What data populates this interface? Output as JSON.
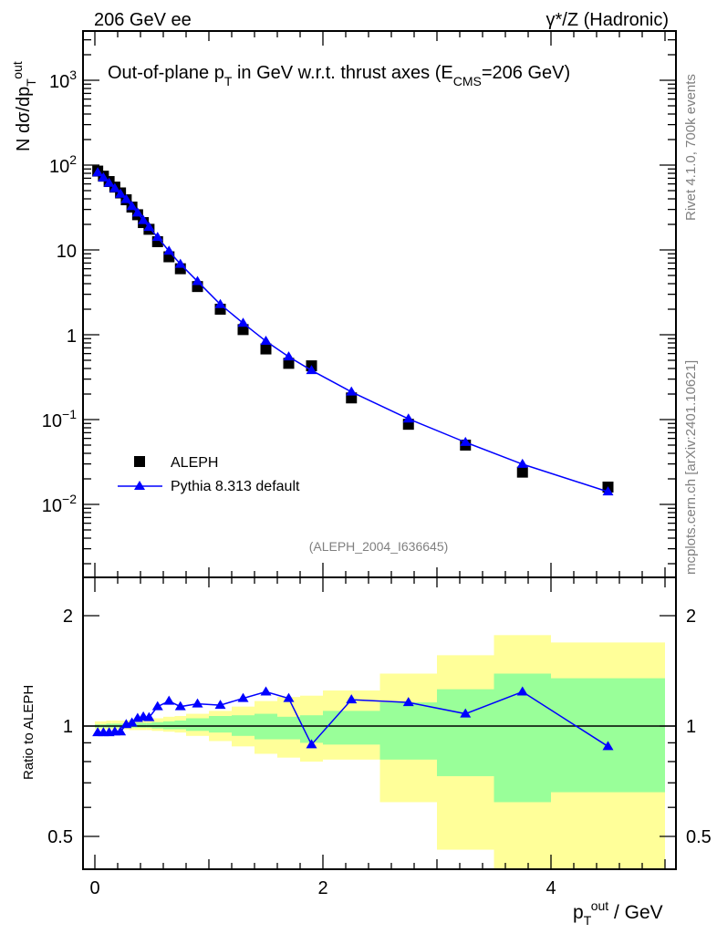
{
  "header": {
    "left": "206 GeV ee",
    "right": "γ*/Z (Hadronic)"
  },
  "side_labels": {
    "rivet": "Rivet 4.1.0,  700k events",
    "mcplots": "mcplots.cern.ch [arXiv:2401.10621]"
  },
  "chart_data": [
    {
      "type": "scatter",
      "title_main": "Out-of-plane p",
      "title_sub": "T",
      "title_rest": " in GeV w.r.t. thrust axes (E",
      "title_sub2": "CMS",
      "title_end": "=206 GeV)",
      "analysis_id": "(ALEPH_2004_I636645)",
      "ylabel_main": "N  dσ/dp",
      "ylabel_sup": "out",
      "ylabel_sub": "T",
      "yscale": "log",
      "ylim": [
        0.0014,
        3700
      ],
      "xlim": [
        -0.1,
        5.1
      ],
      "ytick_labels": [
        {
          "value": 1000,
          "base": "10",
          "exp": "3"
        },
        {
          "value": 100,
          "base": "10",
          "exp": "2"
        },
        {
          "value": 10,
          "base": "10",
          "exp": ""
        },
        {
          "value": 1,
          "base": "1",
          "exp": ""
        },
        {
          "value": 0.1,
          "base": "10",
          "exp": "−1"
        },
        {
          "value": 0.01,
          "base": "10",
          "exp": "−2"
        }
      ],
      "legend_position": "bottom-left",
      "x": [
        0.025,
        0.075,
        0.125,
        0.175,
        0.225,
        0.275,
        0.325,
        0.375,
        0.425,
        0.475,
        0.55,
        0.65,
        0.75,
        0.9,
        1.1,
        1.3,
        1.5,
        1.7,
        1.9,
        2.25,
        2.75,
        3.25,
        3.75,
        4.5
      ],
      "bin_edges": [
        0,
        0.05,
        0.1,
        0.15,
        0.2,
        0.25,
        0.3,
        0.35,
        0.4,
        0.45,
        0.5,
        0.6,
        0.7,
        0.8,
        1.0,
        1.2,
        1.4,
        1.6,
        1.8,
        2.0,
        2.5,
        3.0,
        3.5,
        4.0,
        5.0
      ],
      "series": [
        {
          "name": "ALEPH",
          "marker": "square",
          "color": "#000000",
          "values": [
            85,
            74,
            64,
            55,
            47,
            39,
            32,
            26,
            21,
            17.5,
            12.5,
            8.3,
            6.0,
            3.7,
            2.0,
            1.15,
            0.68,
            0.46,
            0.43,
            0.18,
            0.088,
            0.05,
            0.024,
            0.016
          ]
        },
        {
          "name": "Pythia 8.313 default",
          "marker": "triangle",
          "color": "#0000ff",
          "values": [
            81.6,
            71.0,
            61.4,
            53.1,
            45.6,
            39.4,
            32.6,
            27.3,
            22.3,
            18.5,
            14.1,
            9.7,
            6.8,
            4.26,
            2.28,
            1.37,
            0.84,
            0.55,
            0.38,
            0.212,
            0.102,
            0.054,
            0.0298,
            0.0141
          ]
        }
      ]
    },
    {
      "type": "scatter",
      "ylabel": "Ratio to ALEPH",
      "xlabel_main": "p",
      "xlabel_sup": "out",
      "xlabel_sub": "T",
      "xlabel_rest": " / GeV",
      "yscale": "log",
      "ylim": [
        0.41,
        2.54
      ],
      "xlim": [
        -0.1,
        5.1
      ],
      "ytick_labels": [
        "2",
        "1",
        "0.5"
      ],
      "xtick_labels": [
        "0",
        "2",
        "4"
      ],
      "ratio_values": [
        0.96,
        0.96,
        0.96,
        0.965,
        0.965,
        1.01,
        1.02,
        1.05,
        1.06,
        1.055,
        1.13,
        1.17,
        1.13,
        1.15,
        1.14,
        1.19,
        1.24,
        1.19,
        0.89,
        1.18,
        1.16,
        1.08,
        1.24,
        0.88
      ],
      "band_total": {
        "color": "#ffff99",
        "upper": [
          1.03,
          1.03,
          1.035,
          1.035,
          1.035,
          1.035,
          1.04,
          1.04,
          1.04,
          1.04,
          1.05,
          1.06,
          1.065,
          1.08,
          1.1,
          1.13,
          1.17,
          1.2,
          1.21,
          1.25,
          1.39,
          1.56,
          1.77,
          1.69
        ],
        "lower": [
          0.98,
          0.98,
          0.98,
          0.98,
          0.98,
          0.98,
          0.975,
          0.975,
          0.975,
          0.975,
          0.97,
          0.965,
          0.96,
          0.94,
          0.91,
          0.88,
          0.84,
          0.82,
          0.8,
          0.81,
          0.62,
          0.46,
          0.35,
          0.35
        ]
      },
      "band_stat": {
        "color": "#99ff99",
        "upper": [
          1.01,
          1.01,
          1.015,
          1.015,
          1.015,
          1.015,
          1.02,
          1.02,
          1.02,
          1.02,
          1.025,
          1.03,
          1.035,
          1.05,
          1.065,
          1.07,
          1.08,
          1.06,
          1.07,
          1.1,
          1.16,
          1.26,
          1.39,
          1.35
        ],
        "lower": [
          0.99,
          0.99,
          0.99,
          0.99,
          0.99,
          0.99,
          0.99,
          0.99,
          0.99,
          0.99,
          0.985,
          0.98,
          0.98,
          0.97,
          0.96,
          0.94,
          0.92,
          0.92,
          0.9,
          0.89,
          0.81,
          0.73,
          0.62,
          0.66
        ]
      }
    }
  ]
}
